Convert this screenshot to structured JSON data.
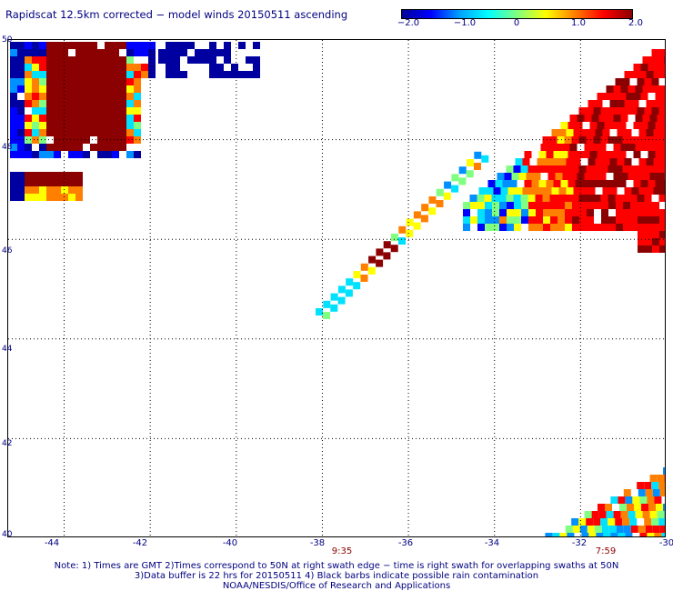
{
  "title": "Rapidscat 12.5km corrected − model winds 20150511 ascending",
  "colorbar": {
    "labels": [
      "−2.0",
      "−1.0",
      "0",
      "1.0",
      "2.0"
    ],
    "stops": [
      "#000096",
      "#0000ff",
      "#00a0ff",
      "#00ffff",
      "#80ff80",
      "#ffff00",
      "#ff8000",
      "#ff0000",
      "#8b0000"
    ]
  },
  "axes": {
    "lat_labels": [
      "50",
      "48",
      "46",
      "44",
      "42",
      "40"
    ],
    "lon_labels": [
      "-44",
      "-42",
      "-40",
      "-38",
      "-36",
      "-34",
      "-32",
      "-30"
    ],
    "lat_range": [
      40,
      50
    ],
    "lon_range": [
      -45.3,
      -30
    ]
  },
  "times": [
    {
      "label": "9:35",
      "lon": -37.3
    },
    {
      "label": "7:59",
      "lon": -31.3
    }
  ],
  "notes": [
    "Note: 1) Times are GMT 2)Times correspond to 50N at right swath edge − time is right swath for overlapping swaths at 50N",
    "3)Data buffer is 22 hrs for 20150511 4) Black barbs indicate possible rain contamination",
    "NOAA/NESDIS/Office of Research and Applications"
  ],
  "colors": {
    "text": "#000080",
    "time": "#8b0000",
    "grid": "#000000"
  },
  "swaths": [
    {
      "name": "nw",
      "lon": [
        -45.2,
        -41.8
      ],
      "lat": [
        47.6,
        49.8
      ],
      "value_trend": "mostly 2.0 (dark red), blue at edges"
    },
    {
      "name": "center-diagonal",
      "lon": [
        -38,
        -34.2
      ],
      "lat": [
        44.6,
        47.8
      ],
      "value_trend": "green/yellow to red"
    },
    {
      "name": "ne",
      "lon": [
        -35,
        -30
      ],
      "lat": [
        46.1,
        49.8
      ],
      "value_trend": "cyan/yellow to dark red"
    },
    {
      "name": "se",
      "lon": [
        -33,
        -30
      ],
      "lat": [
        40,
        41.5
      ],
      "value_trend": "mixed red/yellow/cyan"
    }
  ]
}
